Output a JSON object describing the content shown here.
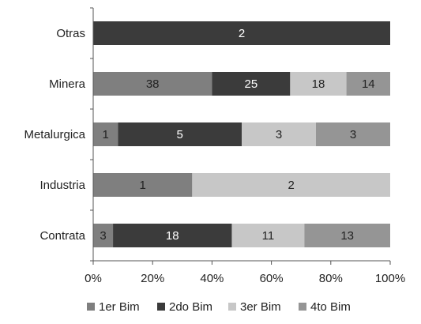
{
  "chart_data": {
    "type": "bar",
    "orientation": "horizontal",
    "stacked": "percent",
    "categories": [
      "Otras",
      "Minera",
      "Metalurgica",
      "Industria",
      "Contrata"
    ],
    "series": [
      {
        "name": "1er Bim",
        "color": "#7f7f7f",
        "values": [
          0,
          38,
          1,
          1,
          3
        ]
      },
      {
        "name": "2do Bim",
        "color": "#3b3b3b",
        "values": [
          2,
          25,
          5,
          0,
          18
        ]
      },
      {
        "name": "3er Bim",
        "color": "#c7c7c7",
        "values": [
          0,
          18,
          3,
          2,
          11
        ]
      },
      {
        "name": "4to Bim",
        "color": "#959595",
        "values": [
          0,
          14,
          3,
          0,
          13
        ]
      }
    ],
    "xlim": [
      0,
      100
    ],
    "xticks": [
      "0%",
      "20%",
      "40%",
      "60%",
      "80%",
      "100%"
    ],
    "legend": "bottom",
    "grid": false
  }
}
